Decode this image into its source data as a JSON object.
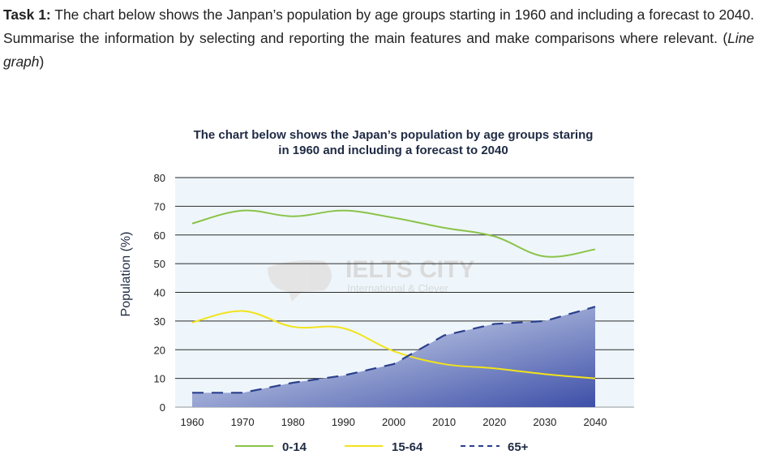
{
  "task": {
    "label": "Task 1:",
    "text": "The chart below shows the Janpan’s population by age groups starting in 1960 and including a forecast to 2040. Summarise the information by selecting and reporting the main features and make comparisons where relevant.",
    "open_paren": " (",
    "type_note": "Line graph",
    "close_paren": ")"
  },
  "watermark": {
    "logo_text": "IELTS CITY",
    "tagline": "International & Clever"
  },
  "colors": {
    "series_0_14": "#8bc34a",
    "series_15_64": "#f2e31b",
    "series_65": "#2a3f8c",
    "area_light": "#eef5fb",
    "area_dark": "#3d4fa8",
    "grid": "#2b2b2b"
  },
  "chart_data": {
    "type": "line",
    "title_line1": "The chart  below shows the Japan’s population by age groups staring",
    "title_line2": "in 1960 and including a forecast to 2040",
    "xlabel": "",
    "ylabel": "Population (%)",
    "ylim": [
      0,
      80
    ],
    "yticks": [
      0,
      10,
      20,
      30,
      40,
      50,
      60,
      70,
      80
    ],
    "grid": true,
    "legend_position": "bottom",
    "x": [
      1960,
      1970,
      1980,
      1990,
      2000,
      2010,
      2020,
      2030,
      2040
    ],
    "series": [
      {
        "name": "0-14",
        "style": "solid",
        "color_key": "series_0_14",
        "values": [
          64,
          68.5,
          66.5,
          68.5,
          66,
          62.5,
          59.5,
          52.5,
          55
        ]
      },
      {
        "name": "15-64",
        "style": "solid",
        "color_key": "series_15_64",
        "values": [
          29.5,
          33.5,
          28,
          27.5,
          19.5,
          15,
          13.5,
          11.5,
          10
        ]
      },
      {
        "name": "65+",
        "style": "dashed",
        "color_key": "series_65",
        "values": [
          5,
          5,
          8.5,
          11,
          15,
          25,
          29,
          30,
          35
        ],
        "area_fill": true
      }
    ]
  }
}
